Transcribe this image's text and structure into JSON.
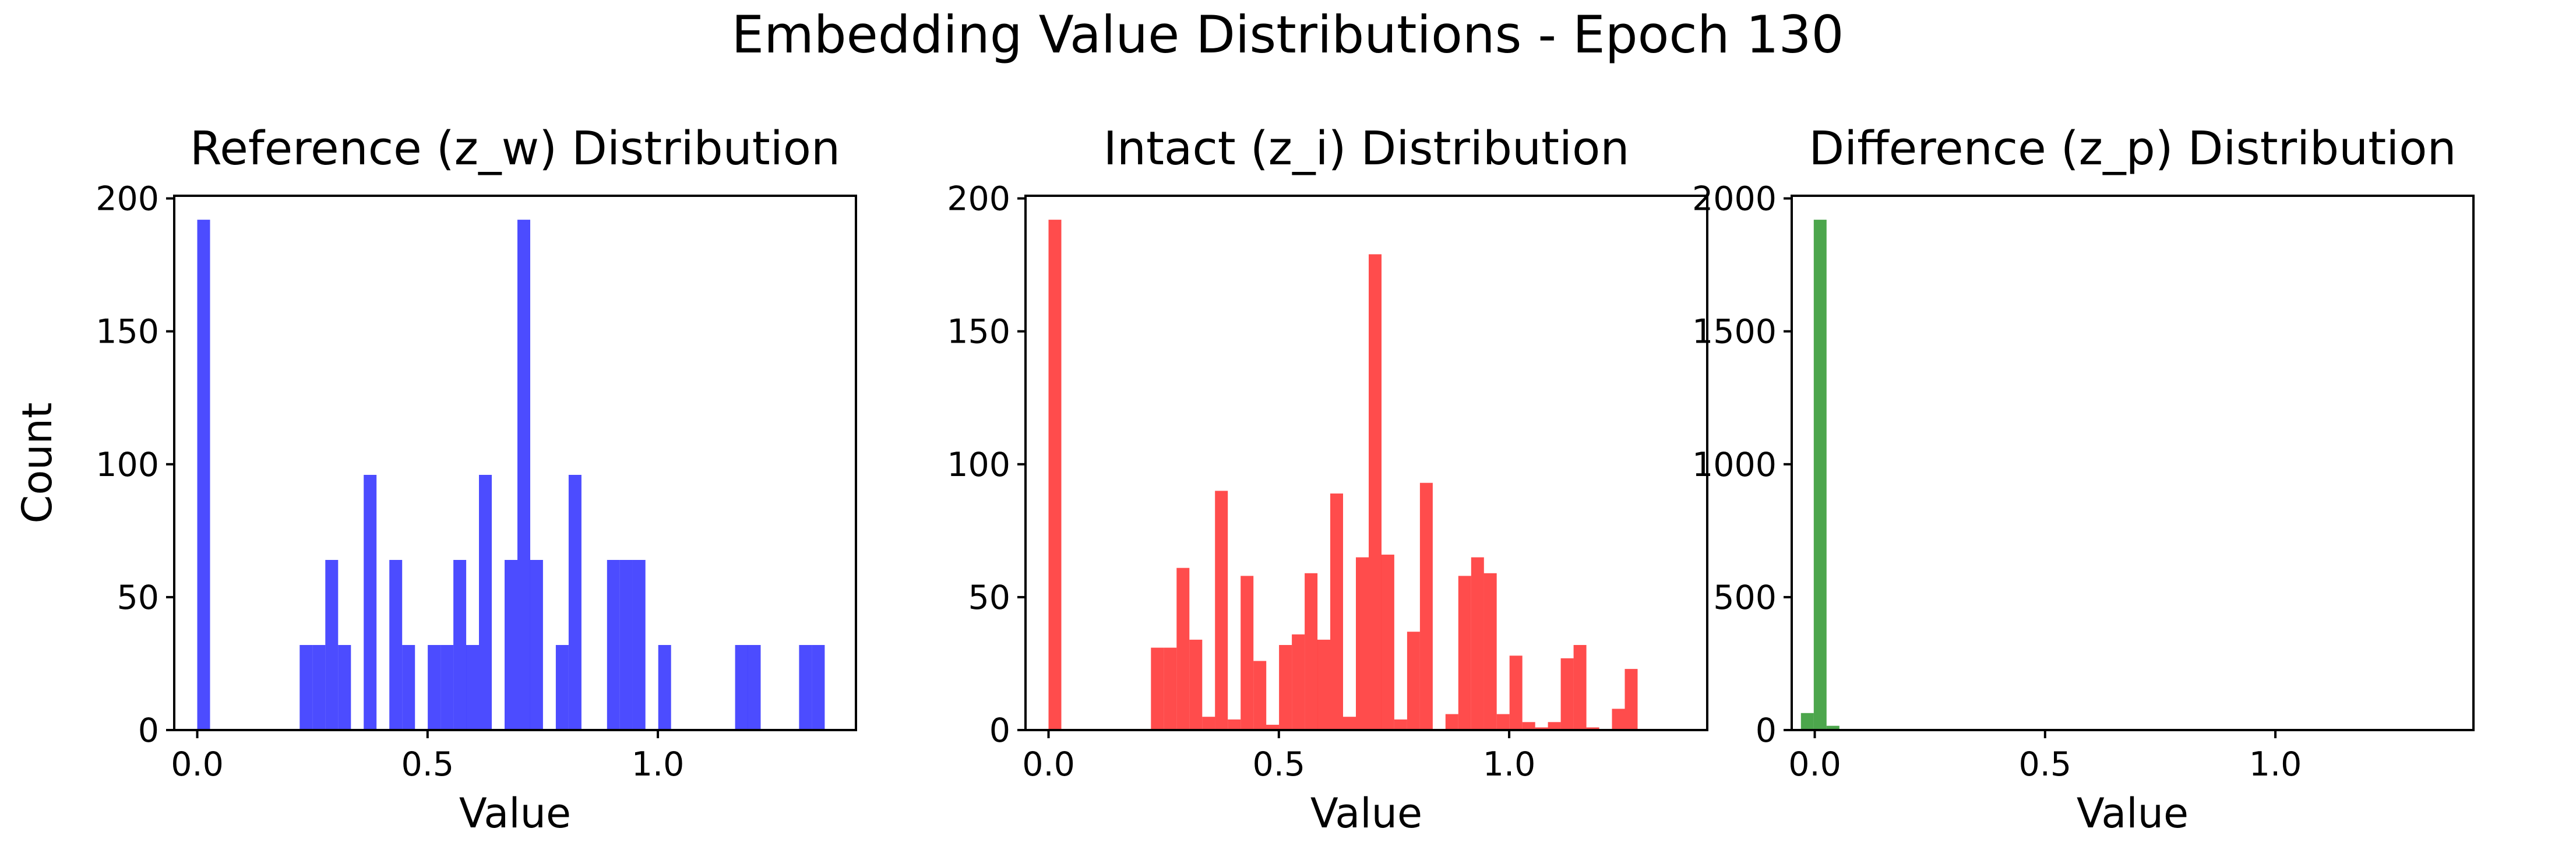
{
  "figure_title": "Embedding Value Distributions - Epoch 130",
  "chart_data": [
    {
      "type": "histogram",
      "title": "Reference (z_w) Distribution",
      "xlabel": "Value",
      "ylabel": "Count",
      "color": "#0000ff",
      "opacity": 0.7,
      "xlim": [
        -0.05,
        1.43
      ],
      "ylim": [
        0,
        201
      ],
      "xticks": [
        0.0,
        0.5,
        1.0
      ],
      "xtick_labels": [
        "0.0",
        "0.5",
        "1.0"
      ],
      "yticks": [
        0,
        50,
        100,
        150,
        200
      ],
      "ytick_labels": [
        "0",
        "50",
        "100",
        "150",
        "200"
      ],
      "bin_start": 0.0,
      "bin_width": 0.0278,
      "counts": [
        192,
        0,
        0,
        0,
        0,
        0,
        0,
        0,
        32,
        32,
        64,
        32,
        0,
        96,
        0,
        64,
        32,
        0,
        32,
        32,
        64,
        32,
        96,
        0,
        64,
        192,
        64,
        0,
        32,
        96,
        0,
        0,
        64,
        64,
        64,
        0,
        32,
        0,
        0,
        0,
        0,
        0,
        32,
        32,
        0,
        0,
        0,
        32,
        32,
        0
      ]
    },
    {
      "type": "histogram",
      "title": "Intact (z_i) Distribution",
      "xlabel": "Value",
      "ylabel": "",
      "color": "#ff0000",
      "opacity": 0.7,
      "xlim": [
        -0.05,
        1.43
      ],
      "ylim": [
        0,
        201
      ],
      "xticks": [
        0.0,
        0.5,
        1.0
      ],
      "xtick_labels": [
        "0.0",
        "0.5",
        "1.0"
      ],
      "yticks": [
        0,
        50,
        100,
        150,
        200
      ],
      "ytick_labels": [
        "0",
        "50",
        "100",
        "150",
        "200"
      ],
      "bin_start": 0.0,
      "bin_width": 0.0278,
      "counts": [
        192,
        0,
        0,
        0,
        0,
        0,
        0,
        0,
        31,
        31,
        61,
        34,
        5,
        90,
        4,
        58,
        26,
        2,
        32,
        36,
        59,
        34,
        89,
        5,
        65,
        179,
        66,
        4,
        37,
        93,
        0,
        6,
        58,
        65,
        59,
        6,
        28,
        3,
        1,
        3,
        27,
        32,
        1,
        0,
        8,
        23,
        0,
        0,
        0,
        0
      ]
    },
    {
      "type": "histogram",
      "title": "Difference (z_p) Distribution",
      "xlabel": "Value",
      "ylabel": "",
      "color": "#008000",
      "opacity": 0.7,
      "xlim": [
        -0.05,
        1.43
      ],
      "ylim": [
        0,
        2010
      ],
      "xticks": [
        0.0,
        0.5,
        1.0
      ],
      "xtick_labels": [
        "0.0",
        "0.5",
        "1.0"
      ],
      "yticks": [
        0,
        500,
        1000,
        1500,
        2000
      ],
      "ytick_labels": [
        "0",
        "500",
        "1000",
        "1500",
        "2000"
      ],
      "bin_start": -0.03,
      "bin_width": 0.0278,
      "counts": [
        64,
        1920,
        16,
        4,
        2,
        1
      ]
    }
  ]
}
